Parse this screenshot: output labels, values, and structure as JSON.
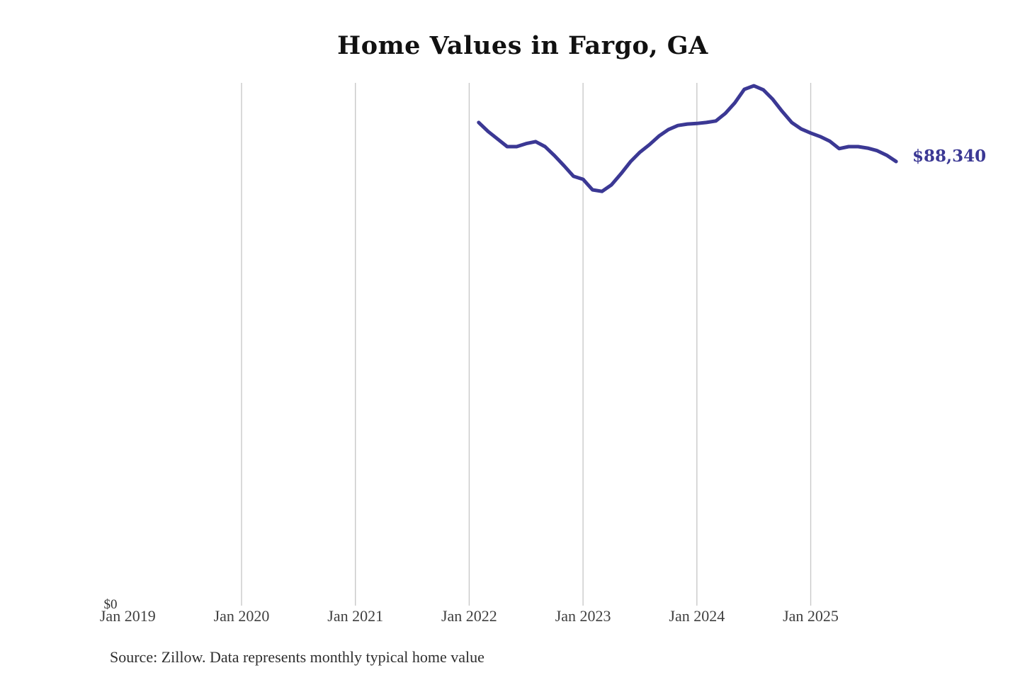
{
  "chart": {
    "title": "Home Values in Fargo, GA",
    "source": "Source: Zillow. Data represents monthly typical home value",
    "latest_value_label": "$88,340",
    "y_zero_label": "$0",
    "colors": {
      "line": "#3b3894",
      "annotation": "#3b3894",
      "gridline": "#c9c9c9",
      "title_text": "#111111",
      "axis_text": "#3f3f3f",
      "source_text": "#2f2f2f"
    }
  },
  "chart_data": {
    "type": "line",
    "title": "Home Values in Fargo, GA",
    "xlabel": "",
    "ylabel": "",
    "ylim": [
      0,
      104000
    ],
    "grid": "vertical-only",
    "legend": "none",
    "y_ticks_shown": [
      "$0"
    ],
    "x_ticks": [
      {
        "label": "Jan 2019",
        "gridline": false
      },
      {
        "label": "Jan 2020",
        "gridline": true
      },
      {
        "label": "Jan 2021",
        "gridline": true
      },
      {
        "label": "Jan 2022",
        "gridline": true
      },
      {
        "label": "Jan 2023",
        "gridline": true
      },
      {
        "label": "Jan 2024",
        "gridline": true
      },
      {
        "label": "Jan 2025",
        "gridline": true
      }
    ],
    "annotation": {
      "text": "$88,340",
      "attached_to": "last-point"
    },
    "series": [
      {
        "name": "Monthly typical home value",
        "months": [
          "Feb 2022",
          "Mar 2022",
          "Apr 2022",
          "May 2022",
          "Jun 2022",
          "Jul 2022",
          "Aug 2022",
          "Sep 2022",
          "Oct 2022",
          "Nov 2022",
          "Dec 2022",
          "Jan 2023",
          "Feb 2023",
          "Mar 2023",
          "Apr 2023",
          "May 2023",
          "Jun 2023",
          "Jul 2023",
          "Aug 2023",
          "Sep 2023",
          "Oct 2023",
          "Nov 2023",
          "Dec 2023",
          "Jan 2024",
          "Feb 2024",
          "Mar 2024",
          "Apr 2024",
          "May 2024",
          "Jun 2024",
          "Jul 2024",
          "Aug 2024",
          "Sep 2024",
          "Oct 2024",
          "Nov 2024",
          "Dec 2024",
          "Jan 2025",
          "Feb 2025",
          "Mar 2025",
          "Apr 2025",
          "May 2025",
          "Jun 2025",
          "Jul 2025",
          "Aug 2025",
          "Sep 2025",
          "Oct 2025"
        ],
        "values": [
          96100,
          94300,
          92800,
          91300,
          91300,
          91900,
          92300,
          91300,
          89500,
          87500,
          85400,
          84800,
          82700,
          82400,
          83700,
          85900,
          88300,
          90200,
          91700,
          93400,
          94700,
          95500,
          95800,
          95900,
          96100,
          96400,
          97900,
          100000,
          102700,
          103400,
          102600,
          100700,
          98300,
          96100,
          94800,
          94000,
          93300,
          92400,
          90900,
          91300,
          91300,
          91000,
          90500,
          89600,
          88340
        ]
      }
    ]
  }
}
